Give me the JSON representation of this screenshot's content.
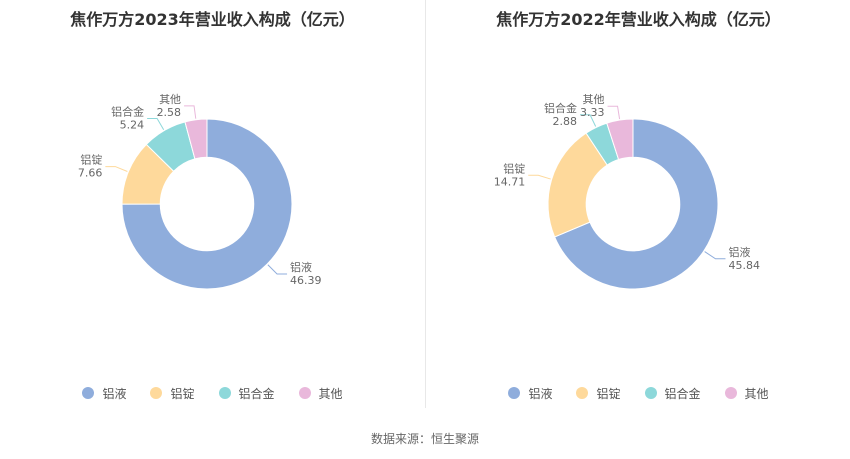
{
  "colors": [
    "#8faddc",
    "#fed99b",
    "#8dd8da",
    "#e9b8db"
  ],
  "legend": [
    "铝液",
    "铝锭",
    "铝合金",
    "其他"
  ],
  "source_text": "数据来源：恒生聚源",
  "chart_data": [
    {
      "type": "pie",
      "title": "焦作万方2023年营业收入构成（亿元）",
      "categories": [
        "铝液",
        "铝锭",
        "铝合金",
        "其他"
      ],
      "values": [
        46.39,
        7.66,
        5.24,
        2.58
      ],
      "value_labels": [
        "46.39",
        "7.66",
        "5.24",
        "2.58"
      ],
      "inner_radius_ratio": 0.55,
      "legend_position": "bottom"
    },
    {
      "type": "pie",
      "title": "焦作万方2022年营业收入构成（亿元）",
      "categories": [
        "铝液",
        "铝锭",
        "铝合金",
        "其他"
      ],
      "values": [
        45.84,
        14.71,
        2.88,
        3.33
      ],
      "value_labels": [
        "45.84",
        "14.71",
        "2.88",
        "3.33"
      ],
      "inner_radius_ratio": 0.55,
      "legend_position": "bottom"
    }
  ]
}
